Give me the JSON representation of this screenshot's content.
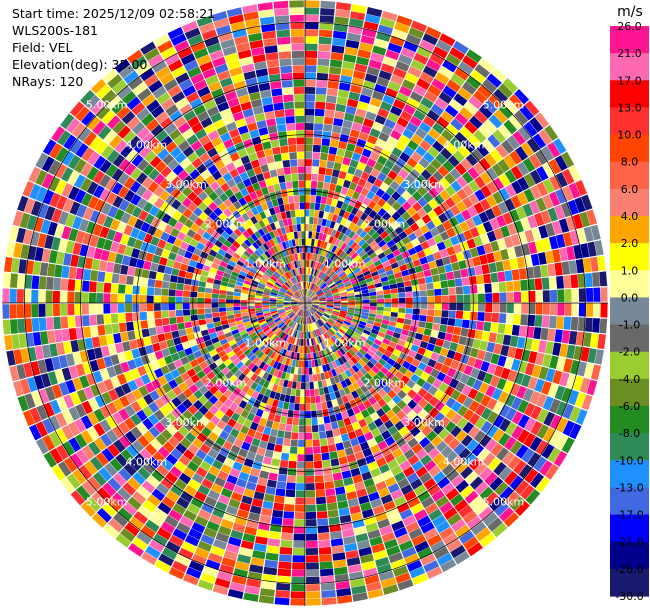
{
  "info": {
    "start_time": "Start time: 2025/12/09 02:58:21",
    "instrument": "WLS200s-181",
    "field": "Field: VEL",
    "elevation": "Elevation(deg): 35.00",
    "nrays": "NRays: 120"
  },
  "chart_data": {
    "type": "heatmap",
    "projection": "polar-ppi",
    "field": "VEL",
    "n_rays": 120,
    "range_rings_km": [
      1.0,
      2.0,
      3.0,
      4.0,
      5.0
    ],
    "ring_labels": [
      "1.00km",
      "2.00km",
      "3.00km",
      "4.00km",
      "5.00km"
    ],
    "max_range_km": 5.4,
    "colorbar": {
      "unit": "m/s",
      "ticks": [
        "26.0",
        "21.0",
        "17.0",
        "13.0",
        "10.0",
        "8.0",
        "6.0",
        "4.0",
        "2.0",
        "1.0",
        "0.0",
        "-1.0",
        "-2.0",
        "-4.0",
        "-6.0",
        "-8.0",
        "-10.0",
        "-13.0",
        "-17.0",
        "-21.0",
        "-26.0",
        "-30.0"
      ],
      "colors": [
        "#ff1493",
        "#ff69b4",
        "#ff0000",
        "#ff3030",
        "#ff4500",
        "#ff6347",
        "#fa8072",
        "#ffa500",
        "#ffff00",
        "#ffff99",
        "#778899",
        "#696969",
        "#9acd32",
        "#6b8e23",
        "#228b22",
        "#2e8b57",
        "#1e90ff",
        "#4169e1",
        "#0000ff",
        "#00008b",
        "#191970"
      ]
    }
  }
}
